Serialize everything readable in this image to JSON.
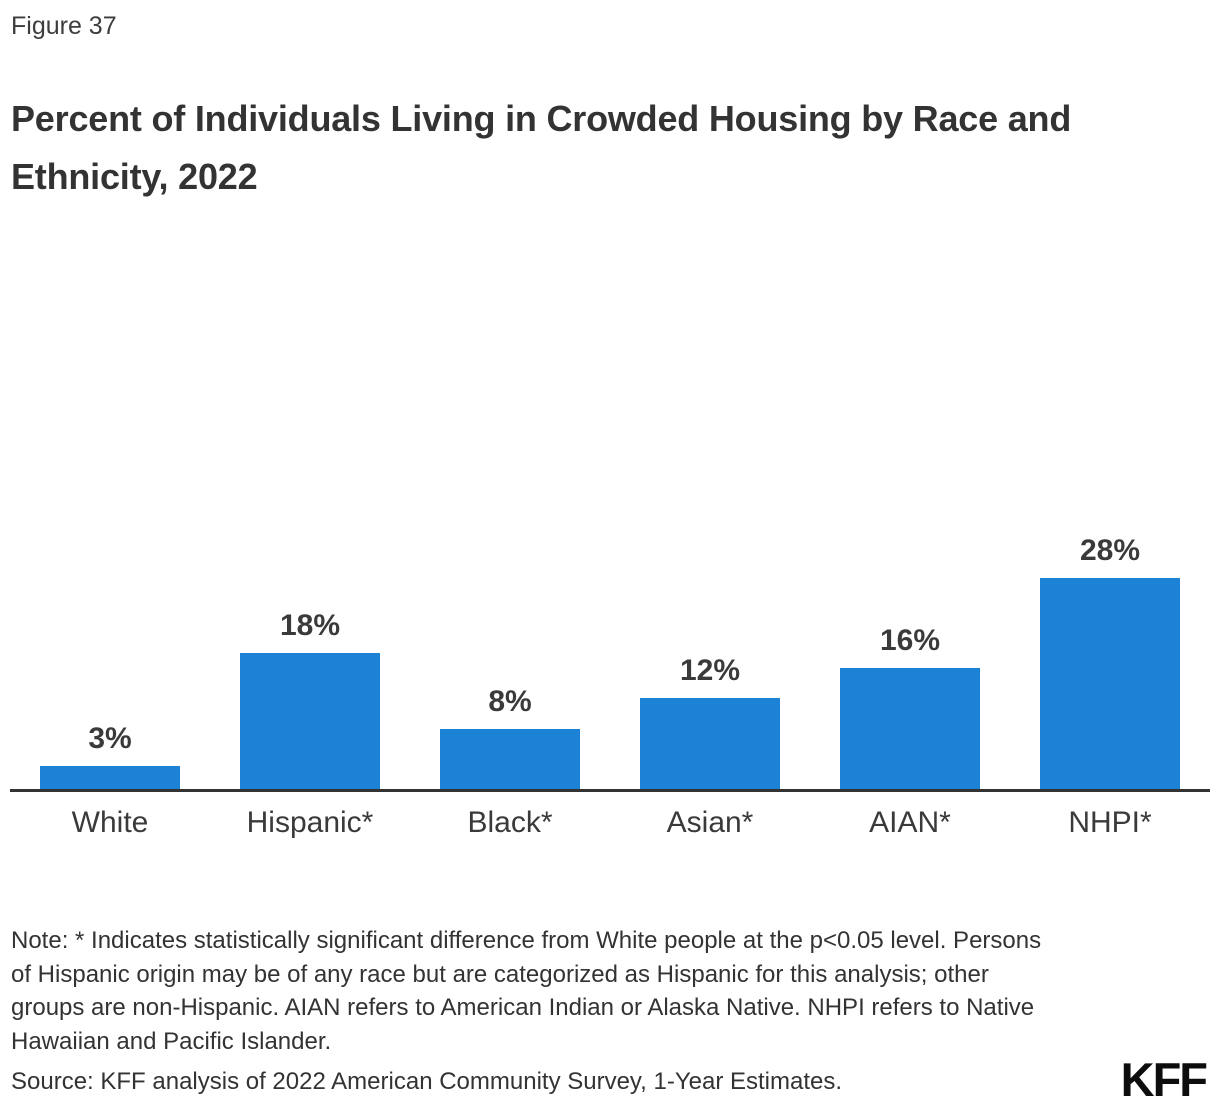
{
  "figure_label": "Figure 37",
  "title": "Percent of Individuals Living in Crowded Housing by Race and Ethnicity, 2022",
  "chart_data": {
    "type": "bar",
    "title": "Percent of Individuals Living in Crowded Housing by Race and Ethnicity, 2022",
    "categories": [
      "White",
      "Hispanic*",
      "Black*",
      "Asian*",
      "AIAN*",
      "NHPI*"
    ],
    "values": [
      3,
      18,
      8,
      12,
      16,
      28
    ],
    "value_labels": [
      "3%",
      "18%",
      "8%",
      "12%",
      "16%",
      "28%"
    ],
    "xlabel": "",
    "ylabel": "",
    "ylim": [
      0,
      30
    ],
    "grid": false,
    "legend": "none",
    "bar_color": "#1c82d6",
    "axis_color": "#333333"
  },
  "note": "Note: * Indicates statistically significant difference from White people at the p<0.05 level. Persons of Hispanic origin may be of any race but are categorized as Hispanic for this analysis; other groups are non-Hispanic. AIAN refers to American Indian or Alaska Native. NHPI refers to Native Hawaiian and Pacific Islander.",
  "source": "Source: KFF analysis of 2022 American Community Survey, 1-Year Estimates.",
  "logo_text": "KFF"
}
